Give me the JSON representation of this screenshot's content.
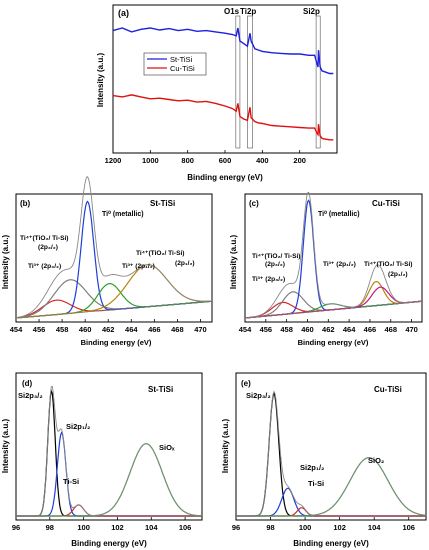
{
  "chart_data": [
    {
      "panel": "(a)",
      "type": "line",
      "xlabel": "Binding energy (eV)",
      "ylabel": "Intensity (a.u.)",
      "xlim": [
        1200,
        0
      ],
      "x_ticks": [
        1200,
        1000,
        800,
        600,
        400,
        200
      ],
      "legend": "top-center",
      "series": [
        {
          "name": "St-TiSi",
          "color": "#1f1fe0",
          "x": [
            1200,
            1150,
            1100,
            1050,
            1000,
            950,
            900,
            850,
            800,
            750,
            700,
            650,
            600,
            560,
            540,
            531,
            520,
            500,
            480,
            466,
            460,
            440,
            420,
            400,
            350,
            300,
            250,
            200,
            150,
            120,
            110,
            102,
            99,
            90,
            80,
            60,
            40,
            20
          ],
          "y": [
            0.88,
            0.9,
            0.87,
            0.89,
            0.9,
            0.885,
            0.895,
            0.88,
            0.89,
            0.875,
            0.88,
            0.87,
            0.86,
            0.85,
            0.84,
            0.9,
            0.8,
            0.78,
            0.76,
            0.86,
            0.8,
            0.74,
            0.73,
            0.72,
            0.71,
            0.705,
            0.7,
            0.7,
            0.69,
            0.69,
            0.64,
            0.6,
            0.73,
            0.6,
            0.57,
            0.56,
            0.55,
            0.55
          ]
        },
        {
          "name": "Cu-TiSi",
          "color": "#e01010",
          "x": [
            1200,
            1150,
            1100,
            1050,
            1000,
            950,
            900,
            850,
            800,
            750,
            700,
            650,
            600,
            560,
            540,
            531,
            520,
            500,
            480,
            466,
            460,
            440,
            420,
            400,
            350,
            300,
            250,
            200,
            150,
            120,
            110,
            102,
            99,
            90,
            80,
            60,
            40,
            20
          ],
          "y": [
            0.38,
            0.37,
            0.385,
            0.37,
            0.355,
            0.36,
            0.35,
            0.34,
            0.345,
            0.33,
            0.335,
            0.32,
            0.3,
            0.28,
            0.26,
            0.32,
            0.22,
            0.2,
            0.19,
            0.29,
            0.21,
            0.18,
            0.17,
            0.165,
            0.15,
            0.145,
            0.14,
            0.135,
            0.13,
            0.13,
            0.1,
            0.08,
            0.16,
            0.07,
            0.05,
            0.045,
            0.04,
            0.04
          ]
        }
      ],
      "annotations": [
        {
          "text": "O1s",
          "x": 531
        },
        {
          "text": "Ti2p",
          "x": 460
        },
        {
          "text": "Si2p",
          "x": 100
        }
      ]
    },
    {
      "panel": "(b)",
      "type": "line",
      "sample": "St-TiSi",
      "xlabel": "Binding energy (eV)",
      "ylabel": "Intensity (a.u.)",
      "xlim": [
        454,
        471
      ],
      "x_ticks": [
        454,
        456,
        458,
        460,
        462,
        464,
        466,
        468,
        470
      ],
      "series": [
        {
          "color": "#d62728",
          "peak": {
            "center": 457.5,
            "height": 0.12,
            "width": 1.2
          }
        },
        {
          "color": "#7f7f7f",
          "peak": {
            "center": 458.7,
            "height": 0.28,
            "width": 1.4
          }
        },
        {
          "color": "#1f3fd6",
          "peak": {
            "center": 460.2,
            "height": 0.92,
            "width": 0.55
          }
        },
        {
          "color": "#2ca02c",
          "peak": {
            "center": 462.1,
            "height": 0.22,
            "width": 1.0
          }
        },
        {
          "color": "#b8860b",
          "peak": {
            "center": 465.4,
            "height": 0.35,
            "width": 1.7
          }
        }
      ],
      "annotations": [
        {
          "text": "Ti⁰ (metallic)"
        },
        {
          "text": "Ti⁴⁺(TiO₂/ Ti-Si)"
        },
        {
          "text": "(2p₃/₂)"
        },
        {
          "text": "Ti³⁺ (2p₃/₂)"
        },
        {
          "text": "Ti³⁺ (2p₁/₂)"
        },
        {
          "text": "Ti⁴⁺(TiO₂/ Ti-Si)"
        },
        {
          "text": "(2p₁/₂)"
        }
      ]
    },
    {
      "panel": "(c)",
      "type": "line",
      "sample": "Cu-TiSi",
      "xlabel": "Binding energy (eV)",
      "ylabel": "Intensity (a.u.)",
      "xlim": [
        454,
        471
      ],
      "x_ticks": [
        454,
        456,
        458,
        460,
        462,
        464,
        466,
        468,
        470
      ],
      "series": [
        {
          "color": "#d62728",
          "peak": {
            "center": 457.6,
            "height": 0.1,
            "width": 1.0
          }
        },
        {
          "color": "#7f7f7f",
          "peak": {
            "center": 458.6,
            "height": 0.18,
            "width": 1.0
          }
        },
        {
          "color": "#1f3fd6",
          "peak": {
            "center": 460.1,
            "height": 0.93,
            "width": 0.5
          }
        },
        {
          "color": "#2ca02c",
          "peak": {
            "center": 462.2,
            "height": 0.05,
            "width": 1.0
          }
        },
        {
          "color": "#b8860b",
          "peak": {
            "center": 466.6,
            "height": 0.2,
            "width": 0.7
          }
        },
        {
          "color": "#c71585",
          "peak": {
            "center": 467.0,
            "height": 0.15,
            "width": 0.8
          }
        }
      ],
      "annotations": [
        {
          "text": "Ti⁰ (metallic)"
        },
        {
          "text": "Ti⁴⁺(TiO₂/ Ti-Si)"
        },
        {
          "text": "(2p₃/₂)"
        },
        {
          "text": "Ti³⁺ (2p₃/₂)"
        },
        {
          "text": "Ti³⁺ (2p₁/₂)"
        },
        {
          "text": "Ti⁴⁺(TiO₂/ Ti-Si)"
        },
        {
          "text": "(2p₁/₂)"
        }
      ]
    },
    {
      "panel": "(d)",
      "type": "line",
      "sample": "St-TiSi",
      "xlabel": "Binding energy (eV)",
      "ylabel": "Intensity (a.u.)",
      "xlim": [
        96,
        107
      ],
      "x_ticks": [
        96,
        98,
        100,
        102,
        104,
        106
      ],
      "series": [
        {
          "color": "#000000",
          "peak": {
            "center": 98.1,
            "height": 0.9,
            "width": 0.22
          }
        },
        {
          "color": "#1f3fd6",
          "peak": {
            "center": 98.7,
            "height": 0.6,
            "width": 0.25
          }
        },
        {
          "color": "#d62728",
          "peak": {
            "center": 99.7,
            "height": 0.08,
            "width": 0.3
          }
        },
        {
          "color": "#2ca02c",
          "peak": {
            "center": 103.7,
            "height": 0.52,
            "width": 0.95
          }
        }
      ],
      "annotations": [
        {
          "text": "Si2p₃/₂"
        },
        {
          "text": "Si2p₁/₂"
        },
        {
          "text": "Ti-Si"
        },
        {
          "text": "SiOₓ"
        }
      ]
    },
    {
      "panel": "(e)",
      "type": "line",
      "sample": "Cu-TiSi",
      "xlabel": "Binding energy (eV)",
      "ylabel": "Intensity (a.u.)",
      "xlim": [
        96,
        107
      ],
      "x_ticks": [
        96,
        98,
        100,
        102,
        104,
        106
      ],
      "series": [
        {
          "color": "#000000",
          "peak": {
            "center": 98.2,
            "height": 0.88,
            "width": 0.28
          }
        },
        {
          "color": "#1f3fd6",
          "peak": {
            "center": 99.0,
            "height": 0.2,
            "width": 0.35
          }
        },
        {
          "color": "#d62728",
          "peak": {
            "center": 99.8,
            "height": 0.06,
            "width": 0.25
          }
        },
        {
          "color": "#2ca02c",
          "peak": {
            "center": 103.7,
            "height": 0.42,
            "width": 1.1
          }
        }
      ],
      "annotations": [
        {
          "text": "Si2p₃/₂"
        },
        {
          "text": "Si2p₁/₂"
        },
        {
          "text": "Ti-Si"
        },
        {
          "text": "SiO₂"
        }
      ]
    }
  ]
}
